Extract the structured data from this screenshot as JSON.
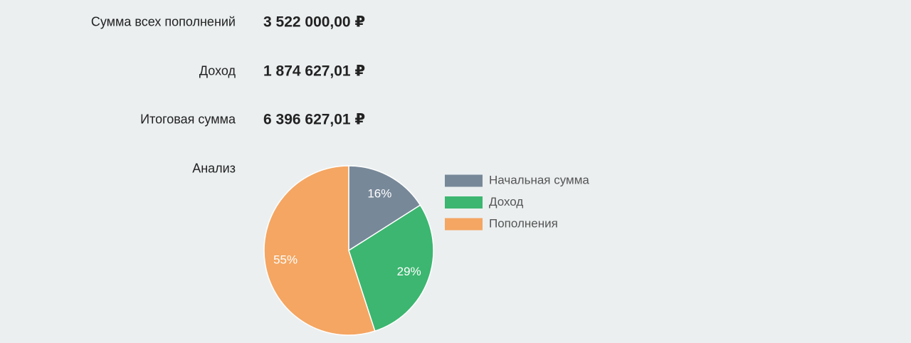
{
  "rows": [
    {
      "label": "Сумма всех пополнений",
      "value": "3 522 000,00 ₽"
    },
    {
      "label": "Доход",
      "value": "1 874 627,01 ₽"
    },
    {
      "label": "Итоговая сумма",
      "value": "6 396 627,01 ₽"
    }
  ],
  "analysis_label": "Анализ",
  "chart_data": {
    "type": "pie",
    "categories": [
      "Начальная сумма",
      "Доход",
      "Пополнения"
    ],
    "values": [
      16,
      29,
      55
    ],
    "value_labels": [
      "16%",
      "29%",
      "55%"
    ],
    "colors": [
      "#778899",
      "#3cb670",
      "#f4a662"
    ],
    "legend": "right"
  }
}
